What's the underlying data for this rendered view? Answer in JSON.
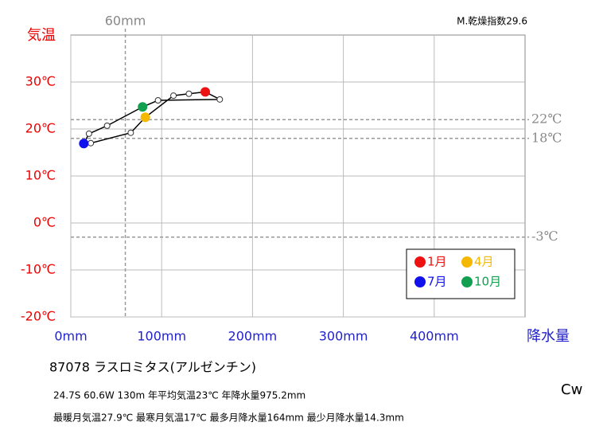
{
  "chart_data": {
    "type": "scatter",
    "title": "M.乾燥指数29.6",
    "y_label": "気温",
    "x_label": "降水量",
    "xlim": [
      0,
      500
    ],
    "ylim": [
      -20,
      40
    ],
    "xticks": [
      {
        "value": 0,
        "label": "0mm"
      },
      {
        "value": 100,
        "label": "100mm"
      },
      {
        "value": 200,
        "label": "200mm"
      },
      {
        "value": 300,
        "label": "300mm"
      },
      {
        "value": 400,
        "label": "400mm"
      }
    ],
    "yticks": [
      {
        "value": -20,
        "label": "-20℃"
      },
      {
        "value": -10,
        "label": "-10℃"
      },
      {
        "value": 0,
        "label": "0℃"
      },
      {
        "value": 10,
        "label": "10℃"
      },
      {
        "value": 20,
        "label": "20℃"
      },
      {
        "value": 30,
        "label": "30℃"
      }
    ],
    "grid": true,
    "x": [
      148,
      130,
      113,
      82,
      66,
      22,
      14.3,
      20,
      40,
      79,
      96,
      164
    ],
    "y": [
      27.9,
      27.5,
      27.1,
      22.5,
      19.2,
      17.0,
      16.9,
      19.0,
      20.7,
      24.7,
      26.1,
      26.3
    ],
    "line_color": "#000000",
    "marker_colors": [
      "#ee1111",
      "#ffffff",
      "#ffffff",
      "#f5b800",
      "#ffffff",
      "#ffffff",
      "#1111ee",
      "#ffffff",
      "#ffffff",
      "#11a050",
      "#ffffff",
      "#ffffff"
    ],
    "legend": [
      {
        "name": "1月",
        "color": "#ee1111"
      },
      {
        "name": "4月",
        "color": "#f5b800"
      },
      {
        "name": "7月",
        "color": "#1111ee"
      },
      {
        "name": "10月",
        "color": "#11a050"
      }
    ],
    "hlines": [
      {
        "value": 22,
        "label": "22℃"
      },
      {
        "value": 18,
        "label": "18℃"
      },
      {
        "value": -3,
        "label": "-3℃"
      }
    ],
    "vline": {
      "value": 60,
      "label": "60mm"
    }
  },
  "station": {
    "name": "87078  ラスロミタス(アルゼンチン)",
    "info": "24.7S  60.6W 130m  年平均気温23℃ 年降水量975.2mm",
    "extremes": "最暖月気温27.9℃ 最寒月気温17℃ 最多月降水量164mm 最少月降水量14.3mm",
    "climate": "Cw"
  }
}
